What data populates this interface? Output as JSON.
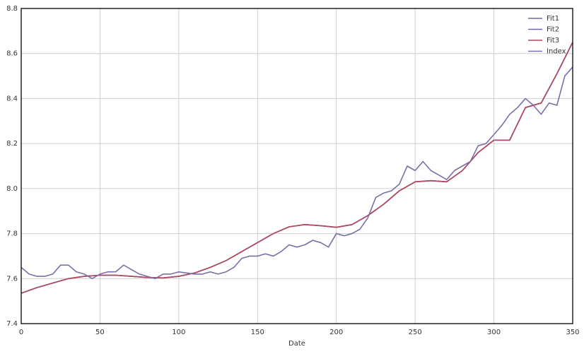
{
  "chart_data": {
    "type": "line",
    "xlabel": "Date",
    "xlim": [
      0,
      350
    ],
    "xticks": [
      0,
      50,
      100,
      150,
      200,
      250,
      300,
      350
    ],
    "ylim": [
      7.4,
      8.8
    ],
    "yticks": [
      7.4,
      7.6,
      7.8,
      {
        "value": 8,
        "label": "8.0"
      },
      8.2,
      8.4,
      8.6,
      8.8
    ],
    "grid": true,
    "legend": "upper right",
    "series": [
      {
        "name": "Fit1",
        "color": "#6c68a8",
        "x": [
          0,
          10,
          20,
          30,
          40,
          50,
          60,
          70,
          80,
          90,
          100,
          110,
          120,
          130,
          140,
          150,
          160,
          170,
          180,
          190,
          200,
          210,
          220,
          230,
          240,
          250,
          260,
          270,
          280,
          290,
          300,
          310,
          320,
          330,
          340,
          350
        ],
        "values": [
          7.535,
          7.56,
          7.58,
          7.6,
          7.61,
          7.615,
          7.615,
          7.61,
          7.605,
          7.603,
          7.61,
          7.625,
          7.65,
          7.68,
          7.72,
          7.76,
          7.8,
          7.83,
          7.84,
          7.835,
          7.828,
          7.84,
          7.88,
          7.93,
          7.99,
          8.03,
          8.035,
          8.03,
          8.08,
          8.16,
          8.215,
          8.215,
          8.36,
          8.38,
          8.51,
          8.65
        ]
      },
      {
        "name": "Fit2",
        "color": "#6c68a8",
        "x": [
          0,
          10,
          20,
          30,
          40,
          50,
          60,
          70,
          80,
          90,
          100,
          110,
          120,
          130,
          140,
          150,
          160,
          170,
          180,
          190,
          200,
          210,
          220,
          230,
          240,
          250,
          260,
          270,
          280,
          290,
          300,
          310,
          320,
          330,
          340,
          350
        ],
        "values": [
          7.535,
          7.56,
          7.58,
          7.6,
          7.61,
          7.615,
          7.615,
          7.61,
          7.605,
          7.603,
          7.61,
          7.625,
          7.65,
          7.68,
          7.72,
          7.76,
          7.8,
          7.83,
          7.84,
          7.835,
          7.828,
          7.84,
          7.88,
          7.93,
          7.99,
          8.03,
          8.035,
          8.03,
          8.08,
          8.16,
          8.215,
          8.215,
          8.36,
          8.38,
          8.51,
          8.65
        ]
      },
      {
        "name": "Fit3",
        "color": "#b5475a",
        "x": [
          0,
          10,
          20,
          30,
          40,
          50,
          60,
          70,
          80,
          90,
          100,
          110,
          120,
          130,
          140,
          150,
          160,
          170,
          180,
          190,
          200,
          210,
          220,
          230,
          240,
          250,
          260,
          270,
          280,
          290,
          300,
          310,
          320,
          330,
          340,
          350
        ],
        "values": [
          7.535,
          7.56,
          7.58,
          7.6,
          7.61,
          7.615,
          7.615,
          7.61,
          7.605,
          7.603,
          7.61,
          7.625,
          7.65,
          7.68,
          7.72,
          7.76,
          7.8,
          7.83,
          7.84,
          7.835,
          7.828,
          7.84,
          7.88,
          7.93,
          7.99,
          8.03,
          8.035,
          8.03,
          8.08,
          8.16,
          8.215,
          8.215,
          8.36,
          8.38,
          8.51,
          8.65
        ]
      },
      {
        "name": "Index",
        "color": "#7a6fa8",
        "x": [
          0,
          5,
          10,
          15,
          20,
          25,
          30,
          35,
          40,
          45,
          50,
          55,
          60,
          65,
          70,
          75,
          80,
          85,
          90,
          95,
          100,
          105,
          110,
          115,
          120,
          125,
          130,
          135,
          140,
          145,
          150,
          155,
          160,
          165,
          170,
          175,
          180,
          185,
          190,
          195,
          200,
          205,
          210,
          215,
          220,
          225,
          230,
          235,
          240,
          245,
          250,
          255,
          260,
          265,
          270,
          275,
          280,
          285,
          290,
          295,
          300,
          305,
          310,
          315,
          320,
          325,
          330,
          335,
          340,
          345,
          350
        ],
        "values": [
          7.65,
          7.62,
          7.61,
          7.61,
          7.62,
          7.66,
          7.66,
          7.63,
          7.62,
          7.6,
          7.62,
          7.63,
          7.63,
          7.66,
          7.64,
          7.62,
          7.61,
          7.6,
          7.62,
          7.62,
          7.63,
          7.625,
          7.62,
          7.62,
          7.63,
          7.62,
          7.63,
          7.65,
          7.69,
          7.7,
          7.7,
          7.71,
          7.7,
          7.72,
          7.75,
          7.74,
          7.75,
          7.77,
          7.76,
          7.74,
          7.8,
          7.79,
          7.8,
          7.82,
          7.87,
          7.96,
          7.98,
          7.99,
          8.02,
          8.1,
          8.08,
          8.12,
          8.08,
          8.06,
          8.04,
          8.08,
          8.1,
          8.12,
          8.19,
          8.2,
          8.24,
          8.28,
          8.33,
          8.36,
          8.4,
          8.37,
          8.33,
          8.38,
          8.37,
          8.5,
          8.54
        ]
      }
    ]
  }
}
